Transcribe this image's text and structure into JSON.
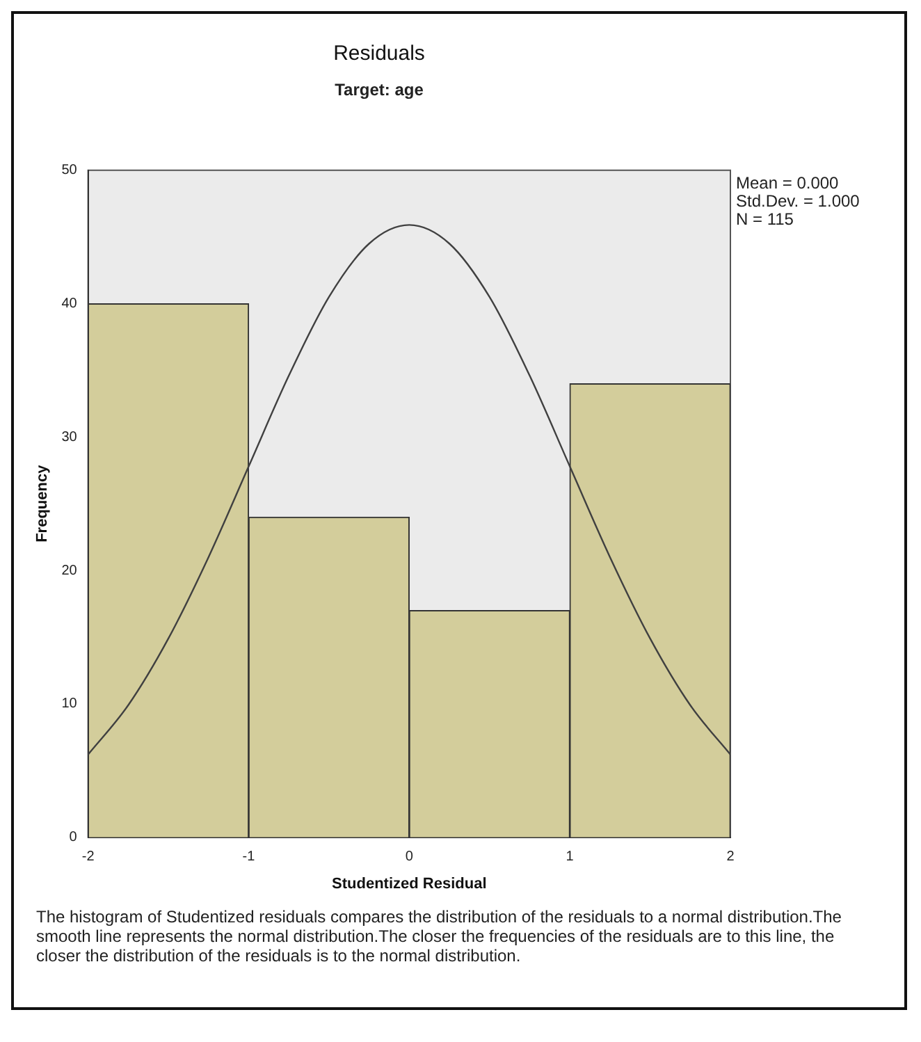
{
  "chart_data": {
    "type": "histogram",
    "title": "Residuals",
    "subtitle": "Target: age",
    "xlabel": "Studentized Residual",
    "ylabel": "Frequency",
    "series": [
      {
        "bins": [
          -2,
          -1,
          0,
          1,
          2
        ],
        "values": [
          40,
          24,
          17,
          34
        ],
        "color": "#d3cd9b"
      },
      {
        "type": "line",
        "x": [
          -2,
          -1.75,
          -1.5,
          -1.25,
          -1,
          -0.75,
          -0.5,
          -0.25,
          0,
          0.25,
          0.5,
          0.75,
          1,
          1.25,
          1.5,
          1.75,
          2
        ],
        "values": [
          6.2,
          9.9,
          14.9,
          21,
          27.8,
          34.6,
          40.5,
          44.5,
          45.9,
          44.5,
          40.5,
          34.6,
          27.8,
          21,
          14.9,
          9.9,
          6.2
        ],
        "color": "#404040"
      }
    ],
    "xlim": [
      -2,
      2
    ],
    "xticks": [
      -2,
      -1,
      0,
      1,
      2
    ],
    "ylim": [
      0,
      50
    ],
    "yticks": [
      0,
      10,
      20,
      30,
      40,
      50
    ],
    "grid": false,
    "legend": false,
    "marker": "none",
    "line_style": "solid",
    "annotations": [
      "Mean = 0.000",
      "Std.Dev. = 1.000",
      "N = 115",
      "The histogram of Studentized residuals compares the distribution of the residuals to a normal distribution.The smooth line represents the normal distribution.The closer the frequencies of the residuals are to this line, the closer the distribution of the residuals is to the normal distribution."
    ]
  }
}
